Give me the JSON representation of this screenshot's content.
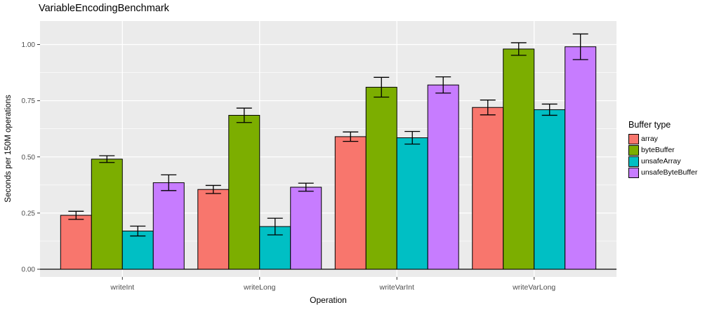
{
  "style": {
    "figure_bg": "#FFFFFF",
    "panel_bg": "#EBEBEB",
    "grid_color": "#FFFFFF",
    "bar_border": "#000000",
    "error_bar_color": "#000000",
    "zero_line_color": "#000000",
    "tick_mark_color": "#333333",
    "tick_label_color": "#4D4D4D",
    "text_color": "#000000"
  },
  "chart_data": {
    "type": "bar",
    "title": "VariableEncodingBenchmark",
    "xlabel": "Operation",
    "ylabel": "Seconds per 150M operations",
    "legend_title": "Buffer type",
    "legend_position": "right",
    "grid": true,
    "categories": [
      "writeInt",
      "writeLong",
      "writeVarInt",
      "writeVarLong"
    ],
    "yticks": [
      0.0,
      0.25,
      0.5,
      0.75,
      1.0
    ],
    "ytick_labels": [
      "0.00",
      "0.25",
      "0.50",
      "0.75",
      "1.00"
    ],
    "minor_yticks": [
      0.125,
      0.375,
      0.625,
      0.875
    ],
    "ylim": [
      0,
      1.05
    ],
    "error_bars": true,
    "series": [
      {
        "name": "array",
        "color": "#F8766D",
        "values": [
          0.24,
          0.355,
          0.59,
          0.72
        ],
        "errors": [
          0.018,
          0.018,
          0.021,
          0.033
        ]
      },
      {
        "name": "byteBuffer",
        "color": "#7CAE00",
        "values": [
          0.49,
          0.685,
          0.81,
          0.98
        ],
        "errors": [
          0.015,
          0.032,
          0.044,
          0.028
        ]
      },
      {
        "name": "unsafeArray",
        "color": "#00BFC4",
        "values": [
          0.17,
          0.19,
          0.585,
          0.71
        ],
        "errors": [
          0.022,
          0.037,
          0.028,
          0.025
        ]
      },
      {
        "name": "unsafeByteBuffer",
        "color": "#C77CFF",
        "values": [
          0.385,
          0.365,
          0.82,
          0.99
        ],
        "errors": [
          0.035,
          0.018,
          0.036,
          0.057
        ]
      }
    ]
  }
}
